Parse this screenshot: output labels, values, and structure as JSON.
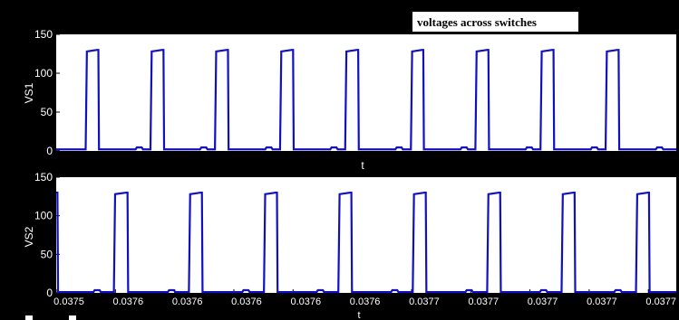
{
  "figure": {
    "title": "voltages across switches",
    "background_color": "#000000",
    "axes_color": "#ffffff",
    "trace_color": "#1010c0",
    "title_box_color": "#ffffff",
    "title_text_color": "#000000",
    "tick_label_color": "#ffffff",
    "bottom_markers": [
      "white-square",
      "white-square"
    ]
  },
  "chart_data": [
    {
      "type": "line",
      "name": "vs1-plot",
      "title": "voltages across switches",
      "xlabel": "t",
      "ylabel": "VS1",
      "ylim": [
        0,
        150
      ],
      "yticks": [
        0,
        50,
        100,
        150
      ],
      "xtick_labels": [],
      "grid": false,
      "xlim": [
        0,
        1
      ],
      "low_level": 2,
      "high_level": 130,
      "pulses": [
        {
          "rise": 0.0475,
          "fall": 0.068
        },
        {
          "rise": 0.152,
          "fall": 0.173
        },
        {
          "rise": 0.256,
          "fall": 0.277
        },
        {
          "rise": 0.361,
          "fall": 0.382
        },
        {
          "rise": 0.466,
          "fall": 0.487
        },
        {
          "rise": 0.572,
          "fall": 0.592
        },
        {
          "rise": 0.676,
          "fall": 0.697
        },
        {
          "rise": 0.781,
          "fall": 0.802
        },
        {
          "rise": 0.886,
          "fall": 0.907
        }
      ],
      "small_bumps": [
        0.128,
        0.232,
        0.337,
        0.442,
        0.547,
        0.652,
        0.757,
        0.862,
        0.967
      ]
    },
    {
      "type": "line",
      "name": "vs2-plot",
      "title": "",
      "xlabel": "t",
      "ylabel": "VS2",
      "ylim": [
        0,
        150
      ],
      "yticks": [
        0,
        50,
        100,
        150
      ],
      "xtick_labels": [
        "0.0375",
        "0.0376",
        "0.0376",
        "0.0376",
        "0.0376",
        "0.0376",
        "0.0377",
        "0.0377",
        "0.0377",
        "0.0377",
        "0.0377"
      ],
      "grid": false,
      "xlim": [
        0,
        1
      ],
      "low_level": 1,
      "high_level": 130,
      "pulses": [
        {
          "rise": -0.005,
          "fall": 0.002
        },
        {
          "rise": 0.093,
          "fall": 0.115
        },
        {
          "rise": 0.214,
          "fall": 0.235
        },
        {
          "rise": 0.335,
          "fall": 0.356
        },
        {
          "rise": 0.455,
          "fall": 0.476
        },
        {
          "rise": 0.575,
          "fall": 0.596
        },
        {
          "rise": 0.695,
          "fall": 0.716
        },
        {
          "rise": 0.815,
          "fall": 0.836
        },
        {
          "rise": 0.935,
          "fall": 0.956
        }
      ],
      "small_bumps": [
        0.06,
        0.18,
        0.3,
        0.42,
        0.54,
        0.66,
        0.78,
        0.9
      ]
    }
  ]
}
